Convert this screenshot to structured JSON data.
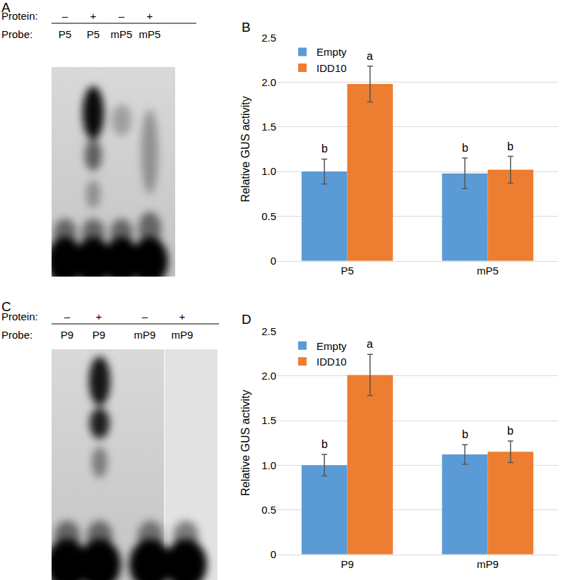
{
  "panels": [
    {
      "label": "A",
      "protein_label": "Protein:",
      "probe_label": "Probe:",
      "protein": [
        "–",
        "+",
        "–",
        "+"
      ],
      "probes": [
        "P5",
        "P5",
        "mP5",
        "mP5"
      ]
    },
    {
      "label": "C",
      "protein_label": "Protein:",
      "probe_label": "Probe:",
      "protein": [
        "–",
        "+",
        "–",
        "+"
      ],
      "probes": [
        "P9",
        "P9",
        "mP9",
        "mP9"
      ]
    }
  ],
  "chart_data": [
    {
      "panel": "B",
      "type": "bar",
      "categories": [
        "P5",
        "mP5"
      ],
      "ylabel": "Relative GUS activity",
      "ylim": [
        0,
        2.5
      ],
      "yticks": [
        0,
        0.5,
        {
          "value": 1,
          "label": "1.0"
        },
        1.5,
        {
          "value": 2,
          "label": "2.0"
        },
        2.5
      ],
      "grid": true,
      "legend": "top-left",
      "series": [
        {
          "name": "Empty",
          "color": "#5b9bd5",
          "values": [
            1.0,
            0.98
          ],
          "errors": [
            0.14,
            0.17
          ],
          "letters": [
            "b",
            "b"
          ]
        },
        {
          "name": "IDD10",
          "color": "#ed7d31",
          "values": [
            1.98,
            1.02
          ],
          "errors": [
            0.2,
            0.15
          ],
          "letters": [
            "a",
            "b"
          ]
        }
      ]
    },
    {
      "panel": "D",
      "type": "bar",
      "categories": [
        "P9",
        "mP9"
      ],
      "ylabel": "Relative GUS activity",
      "ylim": [
        0,
        2.5
      ],
      "yticks": [
        0,
        0.5,
        {
          "value": 1,
          "label": "1.0"
        },
        1.5,
        {
          "value": 2,
          "label": "2.0"
        },
        2.5
      ],
      "grid": true,
      "legend": "top-left",
      "series": [
        {
          "name": "Empty",
          "color": "#5b9bd5",
          "values": [
            1.0,
            1.12
          ],
          "errors": [
            0.12,
            0.11
          ],
          "letters": [
            "b",
            "b"
          ]
        },
        {
          "name": "IDD10",
          "color": "#ed7d31",
          "values": [
            2.01,
            1.15
          ],
          "errors": [
            0.23,
            0.12
          ],
          "letters": [
            "a",
            "b"
          ]
        }
      ]
    }
  ]
}
